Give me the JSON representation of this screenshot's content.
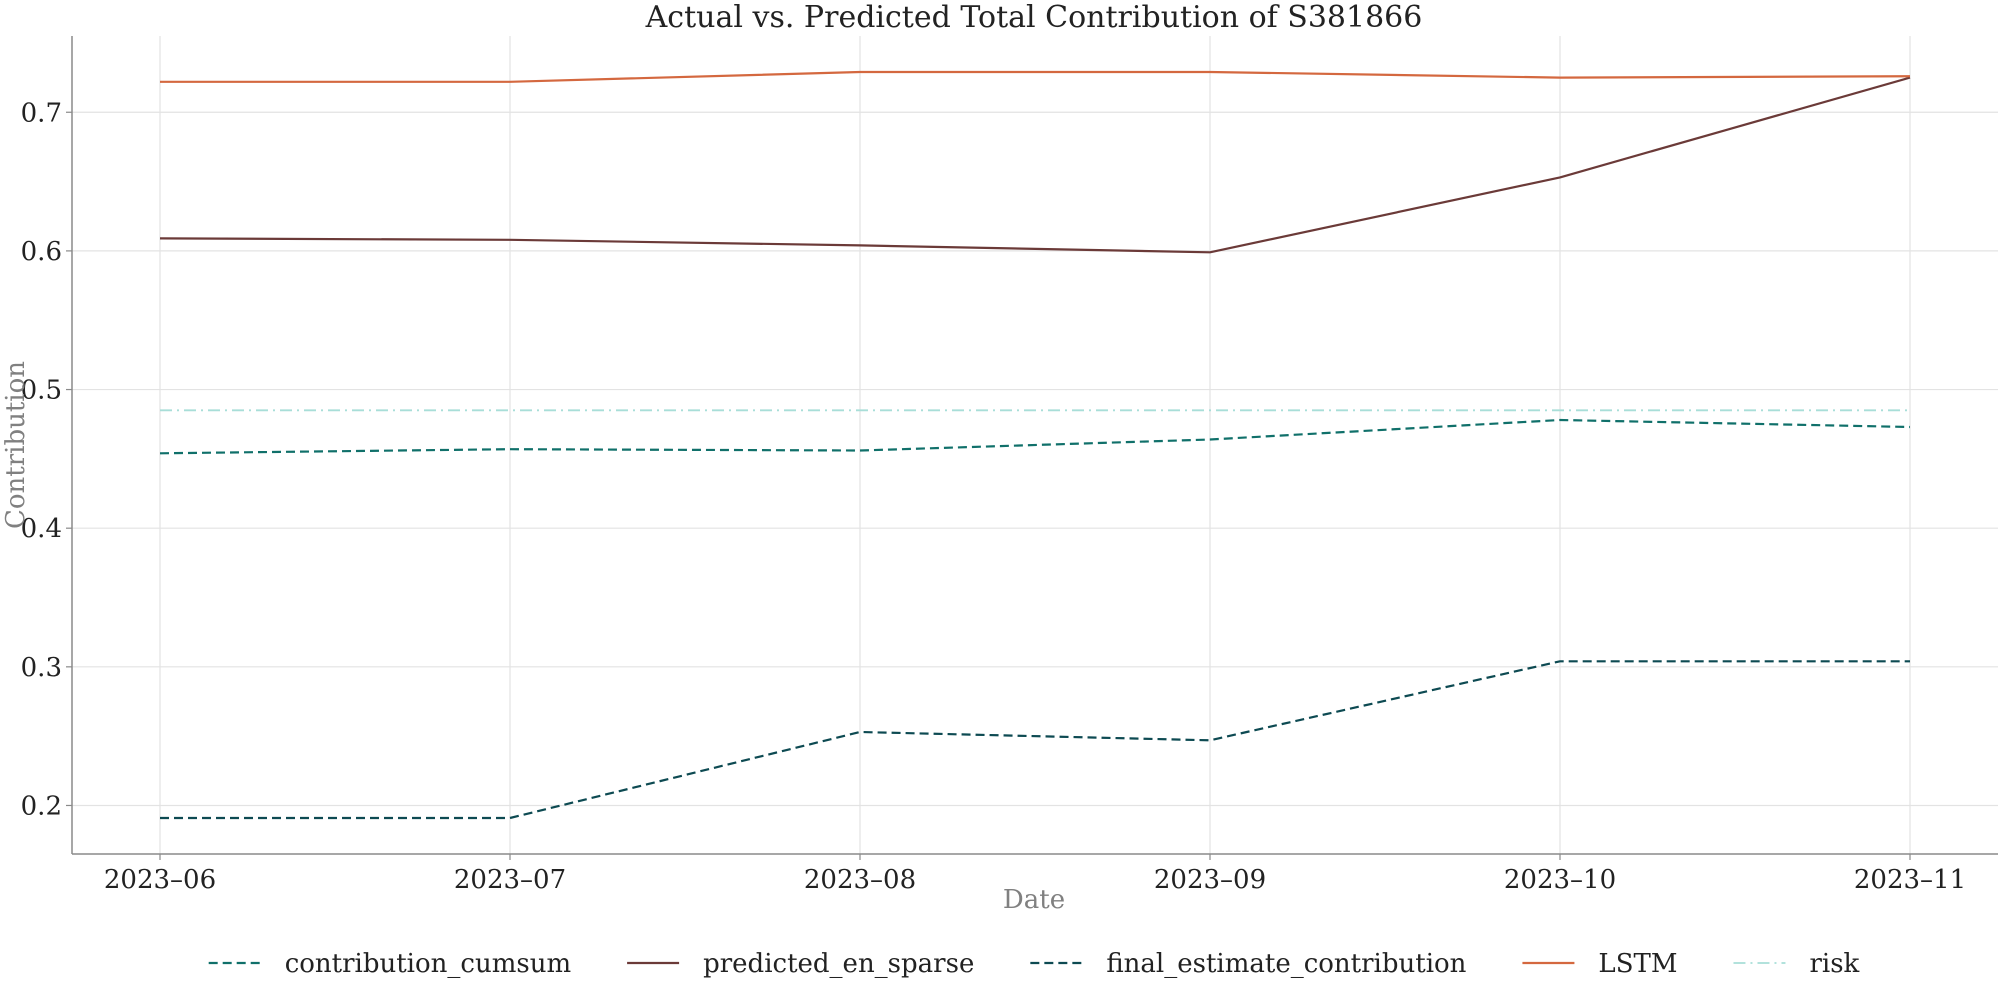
{
  "chart_data": {
    "type": "line",
    "title": "Actual vs. Predicted Total Contribution of S381866",
    "xlabel": "Date",
    "ylabel": "Contribution",
    "x": [
      "2023-06",
      "2023-07",
      "2023-08",
      "2023-09",
      "2023-10",
      "2023-11"
    ],
    "x_tick_labels": [
      "2023–06",
      "2023–07",
      "2023–08",
      "2023–09",
      "2023–10",
      "2023–11"
    ],
    "y_ticks": [
      0.2,
      0.3,
      0.4,
      0.5,
      0.6,
      0.7
    ],
    "y_tick_labels": [
      "0.2",
      "0.3",
      "0.4",
      "0.5",
      "0.6",
      "0.7"
    ],
    "ylim": [
      0.165,
      0.755
    ],
    "grid": true,
    "legend_position": "bottom-center",
    "series": [
      {
        "name": "contribution_cumsum",
        "legend_label": "contribution_cumsum",
        "values": [
          0.454,
          0.457,
          0.456,
          0.464,
          0.478,
          0.473
        ],
        "color": "#10706a",
        "style": "dashed"
      },
      {
        "name": "predicted_en_sparse",
        "legend_label": "predicted_en_sparse",
        "values": [
          0.609,
          0.608,
          0.604,
          0.599,
          0.653,
          0.725
        ],
        "color": "#6b3a38",
        "style": "solid"
      },
      {
        "name": "final_estimate_contribution",
        "legend_label": "final_estimate_contribution",
        "values": [
          0.191,
          0.191,
          0.253,
          0.247,
          0.304,
          0.304
        ],
        "color": "#0d4a52",
        "style": "dashed"
      },
      {
        "name": "LSTM",
        "legend_label": "LSTM",
        "values": [
          0.722,
          0.722,
          0.729,
          0.729,
          0.725,
          0.726
        ],
        "color": "#d4683f",
        "style": "solid"
      },
      {
        "name": "risk",
        "legend_label": "risk",
        "values": [
          0.485,
          0.485,
          0.485,
          0.485,
          0.485,
          0.485
        ],
        "color": "#a8ded8",
        "style": "dashdot"
      }
    ]
  }
}
